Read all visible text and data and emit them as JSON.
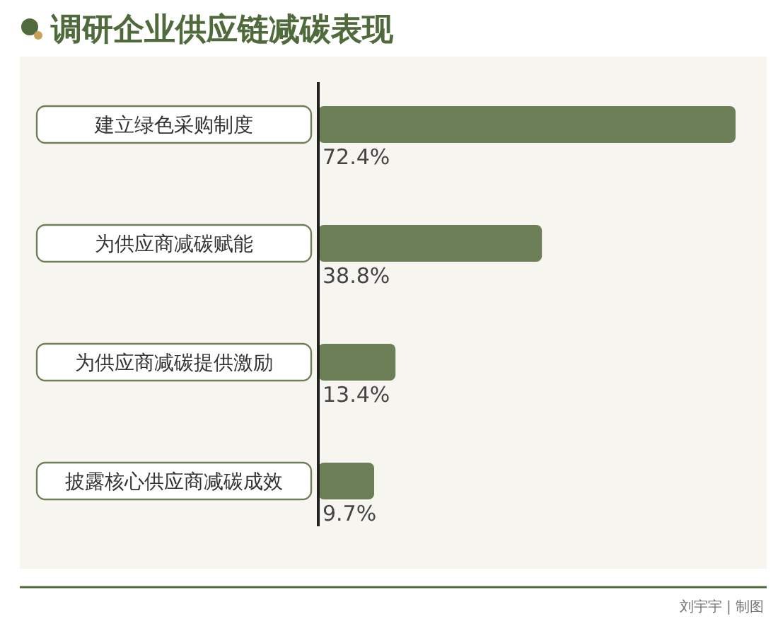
{
  "chart_data": {
    "type": "bar",
    "orientation": "horizontal",
    "title": "调研企业供应链减碳表现",
    "categories": [
      "建立绿色采购制度",
      "为供应商减碳赋能",
      "为供应商减碳提供激励",
      "披露核心供应商减碳成效"
    ],
    "values": [
      72.4,
      38.8,
      13.4,
      9.7
    ],
    "value_labels": [
      "72.4%",
      "38.8%",
      "13.4%",
      "9.7%"
    ],
    "color": "#6c7f56",
    "annotations": [
      "刘宇宇 | 制图"
    ]
  }
}
